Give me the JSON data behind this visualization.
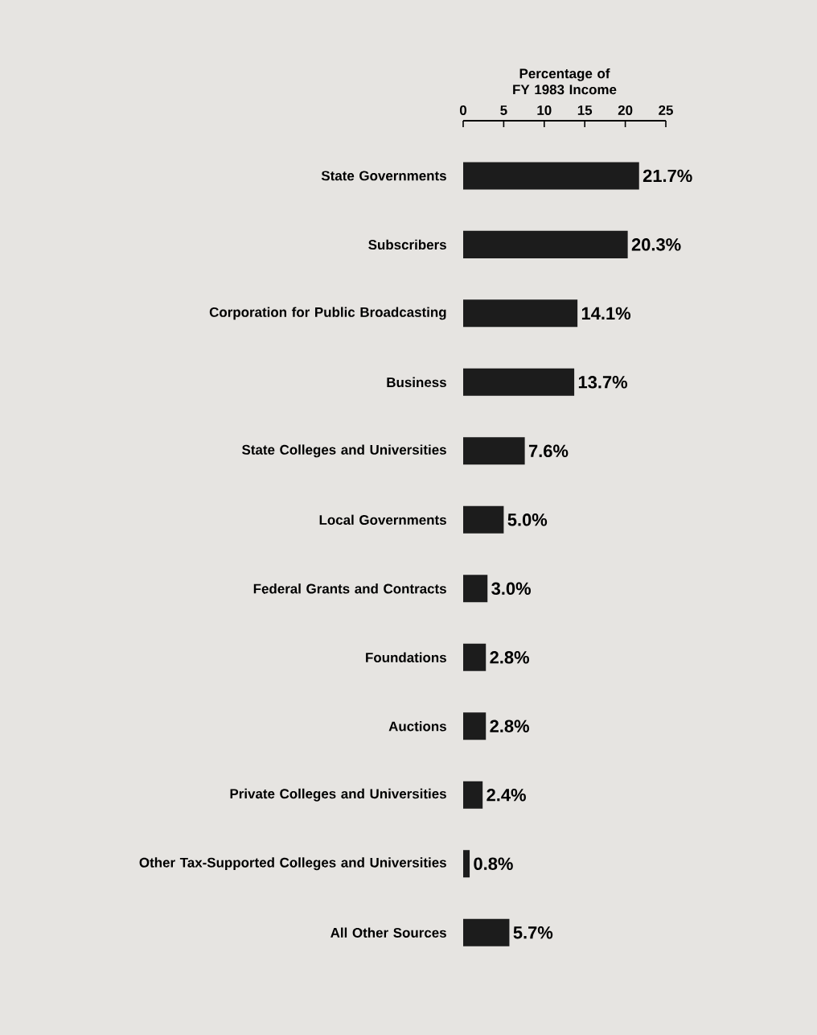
{
  "chart_data": {
    "type": "bar",
    "orientation": "horizontal",
    "xlabel": "Percentage of FY 1983 Income",
    "categories": [
      "State Governments",
      "Subscribers",
      "Corporation for Public Broadcasting",
      "Business",
      "State Colleges and Universities",
      "Local Governments",
      "Federal Grants and Contracts",
      "Foundations",
      "Auctions",
      "Private Colleges and Universities",
      "Other Tax-Supported Colleges and Universities",
      "All Other Sources"
    ],
    "values": [
      21.7,
      20.3,
      14.1,
      13.7,
      7.6,
      5.0,
      3.0,
      2.8,
      2.8,
      2.4,
      0.8,
      5.7
    ],
    "value_labels": [
      "21.7%",
      "20.3%",
      "14.1%",
      "13.7%",
      "7.6%",
      "5.0%",
      "3.0%",
      "2.8%",
      "2.8%",
      "2.4%",
      "0.8%",
      "5.7%"
    ],
    "color": "#1c1c1c",
    "xlim": [
      0,
      25
    ],
    "xticks": [
      0,
      5,
      10,
      15,
      20,
      25
    ]
  }
}
